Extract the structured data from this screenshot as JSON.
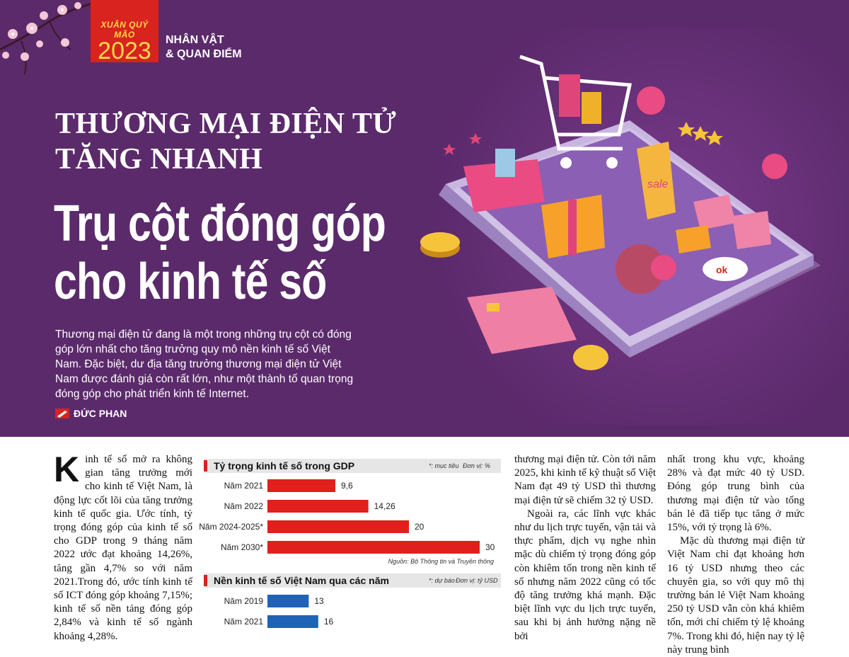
{
  "header": {
    "tet_label": "XUÂN QUÝ MÃO",
    "tet_year": "2023",
    "section_line1": "NHÂN VẬT",
    "section_line2": "& QUAN ĐIỂM"
  },
  "article": {
    "kicker_line1": "THƯƠNG MẠI ĐIỆN TỬ",
    "kicker_line2": "TĂNG NHANH",
    "headline_line1": "Trụ cột đóng góp",
    "headline_line2": "cho kinh tế số",
    "lead": "Thương mại điện tử đang là một trong những trụ cột có đóng góp lớn nhất cho tăng trưởng quy mô nền kinh tế số Việt Nam. Đặc biệt, dư địa tăng trưởng thương mại điện tử Việt Nam được đánh giá còn rất lớn, như một thành tố quan trọng đóng góp cho phát triển kinh tế Internet.",
    "author": "ĐỨC PHAN",
    "dropcap": "K",
    "col1_p1": "inh tế số mở ra không gian tăng trưởng mới cho kinh tế Việt Nam, là động lực cốt lõi của tăng trưởng kinh tế quốc gia. Ước tính, tỷ trọng đóng góp của kinh tế số cho GDP trong 9 tháng năm 2022 ước đạt khoảng 14,26%, tăng gần 4,7% so với năm 2021.Trong đó, ước tính kinh tế số ICT đóng góp khoảng 7,15%; kinh tế số nền tảng đóng góp 2,84% và kinh tế số ngành khoảng 4,28%.",
    "col3_p1": "thương mại điện tử. Còn tới năm 2025, khi kinh tế kỹ thuật số Việt Nam đạt 49 tỷ USD thì thương mại điện tử sẽ chiếm 32 tỷ USD.",
    "col3_p2": "Ngoài ra, các lĩnh vực khác như du lịch trực tuyến, vận tải và thực phẩm, dịch vụ nghe nhìn mặc dù chiếm tỷ trọng đóng góp còn khiêm tốn trong nền kinh tế số nhưng năm 2022 cũng có tốc độ tăng trưởng khá mạnh. Đặc biệt lĩnh vực du lịch trực tuyến, sau khi bị ảnh hưởng nặng nề bởi",
    "col4_p1": "nhất trong khu vực, khoảng 28% và đạt mức 40 tỷ USD. Đóng góp trung bình của thương mại điện tử vào tổng bán lẻ đã tiếp tục tăng ở mức 15%, với tỷ trọng là 6%.",
    "col4_p2": "Mặc dù thương mại điện tử Việt Nam chỉ đạt khoảng hơn 16 tỷ USD nhưng theo các chuyên gia, so với quy mô thị trường bán lẻ Việt Nam khoảng 250 tỷ USD vẫn còn khá khiêm tốn, mới chỉ chiếm tỷ lệ khoảng 7%. Trong khi đó, hiện nay tỷ lệ này trung bình"
  },
  "colors": {
    "banner": "#5b2a6b",
    "accent_red": "#d8231f",
    "bar_red": "#e0201c",
    "bar_blue": "#1e63b5"
  },
  "chart_data": [
    {
      "type": "bar",
      "title": "Tỷ trọng kinh tế số trong GDP",
      "note": "*: mục tiêu",
      "unit": "Đơn vị: %",
      "categories": [
        "Năm 2021",
        "Năm 2022",
        "Năm 2024-2025*",
        "Năm 2030*"
      ],
      "values": [
        9.6,
        14.26,
        20,
        30
      ],
      "value_labels": [
        "9,6",
        "14,26",
        "20",
        "30"
      ],
      "source": "Nguồn: Bộ Thông tin và Truyền thông",
      "xlim": [
        0,
        30
      ],
      "color": "#e0201c"
    },
    {
      "type": "bar",
      "title": "Nền kinh tế số Việt Nam qua các năm",
      "note": "*: dự báo",
      "unit": "Đơn vị: tỷ USD",
      "categories": [
        "Năm 2019",
        "Năm 2021"
      ],
      "values": [
        13,
        16
      ],
      "value_labels": [
        "13",
        "16"
      ],
      "xlim": [
        0,
        49
      ],
      "color": "#1e63b5"
    }
  ]
}
